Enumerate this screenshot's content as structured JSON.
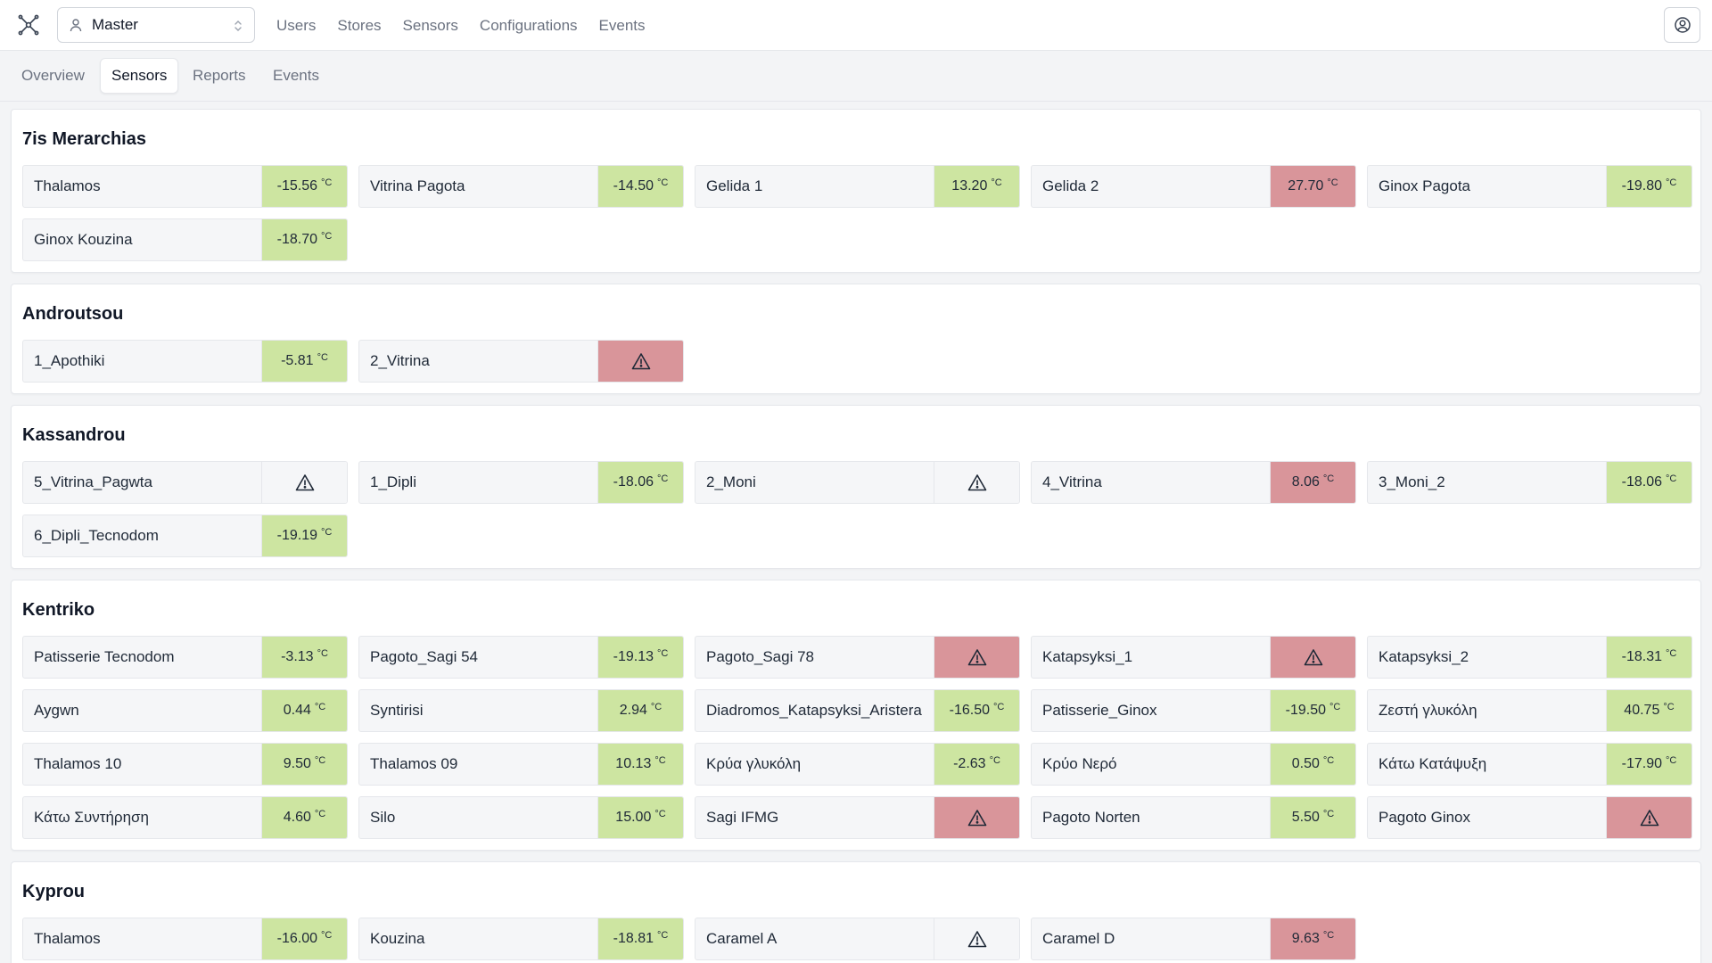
{
  "header": {
    "account_select": {
      "value": "Master"
    },
    "nav": [
      "Users",
      "Stores",
      "Sensors",
      "Configurations",
      "Events"
    ]
  },
  "tabs": [
    {
      "label": "Overview",
      "active": false
    },
    {
      "label": "Sensors",
      "active": true
    },
    {
      "label": "Reports",
      "active": false
    },
    {
      "label": "Events",
      "active": false
    }
  ],
  "unit": "°C",
  "colors": {
    "ok": "#cde5a1",
    "alarm": "#d9959a",
    "nodata": "#f5f6f8"
  },
  "stores": [
    {
      "name": "7is Merarchias",
      "sensors": [
        {
          "name": "Thalamos",
          "value": "-15.56",
          "status": "ok"
        },
        {
          "name": "Vitrina Pagota",
          "value": "-14.50",
          "status": "ok"
        },
        {
          "name": "Gelida 1",
          "value": "13.20",
          "status": "ok"
        },
        {
          "name": "Gelida 2",
          "value": "27.70",
          "status": "alarm"
        },
        {
          "name": "Ginox Pagota",
          "value": "-19.80",
          "status": "ok"
        },
        {
          "name": "Ginox Kouzina",
          "value": "-18.70",
          "status": "ok"
        }
      ]
    },
    {
      "name": "Androutsou",
      "sensors": [
        {
          "name": "1_Apothiki",
          "value": "-5.81",
          "status": "ok"
        },
        {
          "name": "2_Vitrina",
          "value": null,
          "status": "alarm"
        }
      ]
    },
    {
      "name": "Kassandrou",
      "sensors": [
        {
          "name": "5_Vitrina_Pagwta",
          "value": null,
          "status": "nodata"
        },
        {
          "name": "1_Dipli",
          "value": "-18.06",
          "status": "ok"
        },
        {
          "name": "2_Moni",
          "value": null,
          "status": "nodata"
        },
        {
          "name": "4_Vitrina",
          "value": "8.06",
          "status": "alarm"
        },
        {
          "name": "3_Moni_2",
          "value": "-18.06",
          "status": "ok"
        },
        {
          "name": "6_Dipli_Tecnodom",
          "value": "-19.19",
          "status": "ok"
        }
      ]
    },
    {
      "name": "Kentriko",
      "sensors": [
        {
          "name": "Patisserie Tecnodom",
          "value": "-3.13",
          "status": "ok"
        },
        {
          "name": "Pagoto_Sagi 54",
          "value": "-19.13",
          "status": "ok"
        },
        {
          "name": "Pagoto_Sagi 78",
          "value": null,
          "status": "alarm"
        },
        {
          "name": "Katapsyksi_1",
          "value": null,
          "status": "alarm"
        },
        {
          "name": "Katapsyksi_2",
          "value": "-18.31",
          "status": "ok"
        },
        {
          "name": "Aygwn",
          "value": "0.44",
          "status": "ok"
        },
        {
          "name": "Syntirisi",
          "value": "2.94",
          "status": "ok"
        },
        {
          "name": "Diadromos_Katapsyksi_Aristera",
          "value": "-16.50",
          "status": "ok"
        },
        {
          "name": "Patisserie_Ginox",
          "value": "-19.50",
          "status": "ok"
        },
        {
          "name": "Ζεστή γλυκόλη",
          "value": "40.75",
          "status": "ok"
        },
        {
          "name": "Thalamos 10",
          "value": "9.50",
          "status": "ok"
        },
        {
          "name": "Thalamos 09",
          "value": "10.13",
          "status": "ok"
        },
        {
          "name": "Κρύα γλυκόλη",
          "value": "-2.63",
          "status": "ok"
        },
        {
          "name": "Κρύο Νερό",
          "value": "0.50",
          "status": "ok"
        },
        {
          "name": "Κάτω Κατάψυξη",
          "value": "-17.90",
          "status": "ok"
        },
        {
          "name": "Κάτω Συντήρηση",
          "value": "4.60",
          "status": "ok"
        },
        {
          "name": "Silo",
          "value": "15.00",
          "status": "ok"
        },
        {
          "name": "Sagi IFMG",
          "value": null,
          "status": "alarm"
        },
        {
          "name": "Pagoto Norten",
          "value": "5.50",
          "status": "ok"
        },
        {
          "name": "Pagoto Ginox",
          "value": null,
          "status": "alarm"
        }
      ]
    },
    {
      "name": "Kyprou",
      "sensors": [
        {
          "name": "Thalamos",
          "value": "-16.00",
          "status": "ok"
        },
        {
          "name": "Kouzina",
          "value": "-18.81",
          "status": "ok"
        },
        {
          "name": "Caramel A",
          "value": null,
          "status": "nodata"
        },
        {
          "name": "Caramel D",
          "value": "9.63",
          "status": "alarm"
        }
      ]
    }
  ]
}
